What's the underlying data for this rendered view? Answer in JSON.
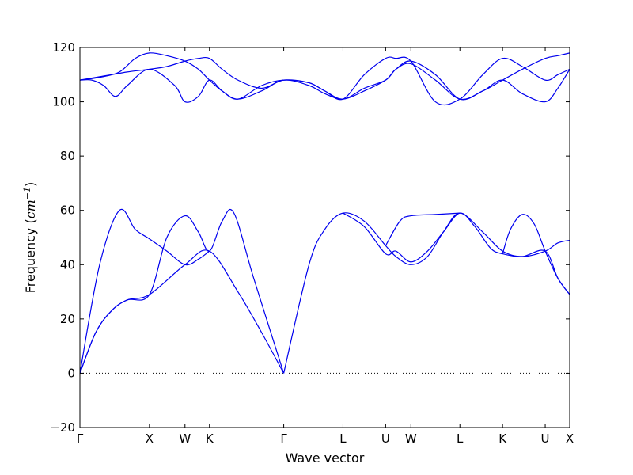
{
  "chart_data": {
    "type": "line",
    "title": "",
    "xlabel": "Wave vector",
    "ylabel": "Frequency (",
    "ylabel_unit": "cm",
    "ylabel_exp": "−1",
    "ylabel_close": ")",
    "ylim": [
      -20,
      120
    ],
    "xlim": [
      0,
      620
    ],
    "yticks": [
      -20,
      0,
      20,
      40,
      60,
      80,
      100,
      120
    ],
    "ytick_labels": [
      "−20",
      "0",
      "20",
      "40",
      "60",
      "80",
      "100",
      "120"
    ],
    "xticks": [
      {
        "x": 0,
        "label": "Γ"
      },
      {
        "x": 88,
        "label": "X"
      },
      {
        "x": 133,
        "label": "W"
      },
      {
        "x": 164,
        "label": "K"
      },
      {
        "x": 258,
        "label": "Γ"
      },
      {
        "x": 333,
        "label": "L"
      },
      {
        "x": 387,
        "label": "U"
      },
      {
        "x": 419,
        "label": "W"
      },
      {
        "x": 481,
        "label": "L"
      },
      {
        "x": 535,
        "label": "K"
      },
      {
        "x": 589,
        "label": "U"
      },
      {
        "x": 620,
        "label": "X"
      }
    ],
    "zero_line": true,
    "line_color": "#0000ee",
    "series": [
      {
        "x": [
          0,
          20,
          40,
          60,
          88,
          133,
          164,
          200,
          230,
          258
        ],
        "values": [
          0,
          15,
          23,
          27,
          29,
          40,
          45,
          30,
          15,
          0
        ]
      },
      {
        "x": [
          0,
          25,
          50,
          70,
          88,
          110,
          133,
          150,
          164
        ],
        "values": [
          0,
          40,
          60,
          53,
          49.5,
          45,
          40,
          42,
          45
        ]
      },
      {
        "x": [
          0,
          20,
          40,
          60,
          88,
          110,
          133,
          150,
          164,
          180,
          195,
          220,
          258
        ],
        "values": [
          0,
          15,
          23,
          27,
          29,
          50,
          58,
          52,
          45,
          56,
          59,
          35,
          0
        ]
      },
      {
        "x": [
          258,
          290,
          310,
          333,
          360,
          387,
          400,
          419,
          440,
          460,
          481,
          510,
          535,
          560,
          589,
          605,
          620
        ],
        "values": [
          0,
          40,
          53,
          59,
          56,
          47,
          43,
          40,
          43,
          52,
          59,
          52,
          45,
          43,
          45,
          48,
          49
        ]
      },
      {
        "x": [
          333,
          360,
          387,
          400,
          419,
          440,
          460,
          481,
          500,
          520,
          535,
          560,
          589,
          605,
          620
        ],
        "values": [
          59,
          54,
          44,
          45,
          41,
          45,
          52,
          59,
          54,
          46,
          44,
          43,
          45,
          35,
          29
        ]
      },
      {
        "x": [
          387,
          405,
          419,
          450,
          481
        ],
        "values": [
          47,
          56,
          58,
          58.5,
          59
        ]
      },
      {
        "x": [
          535,
          545,
          560,
          575,
          589,
          605,
          620
        ],
        "values": [
          44,
          53,
          58.5,
          55,
          45,
          35,
          29
        ]
      },
      {
        "x": [
          0,
          15,
          30,
          45,
          60,
          88,
          120,
          133,
          150,
          164,
          180,
          200,
          230,
          258,
          290,
          310,
          333,
          360,
          387,
          400,
          419,
          450,
          481,
          510,
          535,
          560,
          589,
          605,
          620
        ],
        "values": [
          108,
          108,
          106,
          102,
          106,
          112,
          106,
          100,
          102,
          108,
          104,
          101,
          104,
          108,
          106,
          103,
          101,
          104,
          108,
          112,
          114,
          108,
          101,
          104,
          108,
          103,
          100,
          105,
          112
        ]
      },
      {
        "x": [
          0,
          20,
          40,
          60,
          88,
          110,
          133,
          150,
          164,
          180,
          200,
          230,
          258,
          290,
          310,
          333,
          360,
          387,
          400,
          419,
          450,
          481,
          510,
          535,
          560,
          589,
          605,
          620
        ],
        "values": [
          108,
          109,
          110,
          111,
          112,
          113,
          115,
          116,
          116,
          112,
          108,
          105,
          108,
          107,
          104,
          101,
          105,
          108,
          112,
          115,
          110,
          101,
          104,
          108,
          112,
          116,
          117,
          118
        ]
      },
      {
        "x": [
          0,
          25,
          50,
          70,
          88,
          110,
          133,
          150,
          164,
          180,
          200,
          230,
          258,
          290,
          310,
          333,
          360,
          387,
          400,
          419,
          450,
          481,
          510,
          535,
          560,
          589,
          605,
          620
        ],
        "values": [
          108,
          109,
          111,
          116,
          118,
          117,
          115,
          112,
          108,
          104,
          101,
          106,
          108,
          107,
          104,
          101,
          110,
          116,
          116,
          115,
          100,
          101,
          110,
          116,
          113,
          108,
          110,
          112
        ]
      }
    ]
  }
}
